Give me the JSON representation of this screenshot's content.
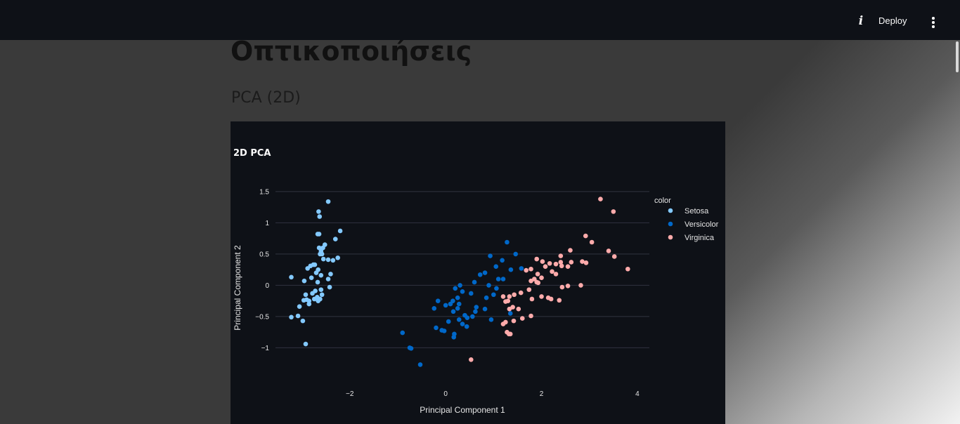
{
  "header": {
    "deploy_label": "Deploy",
    "info_icon": "info-icon",
    "menu_icon": "more-vert-icon"
  },
  "page": {
    "title": "Οπτικοποιήσεις",
    "subtitle": "PCA (2D)"
  },
  "chart_data": {
    "type": "scatter",
    "title": "2D PCA",
    "xlabel": "Principal Component 1",
    "ylabel": "Principal Component 2",
    "xlim": [
      -3.55,
      4.25
    ],
    "ylim": [
      -1.4,
      1.6
    ],
    "xticks": [
      -2,
      0,
      2,
      4
    ],
    "yticks": [
      -1,
      -0.5,
      0,
      0.5,
      1,
      1.5
    ],
    "xtick_labels": [
      "−2",
      "0",
      "2",
      "4"
    ],
    "ytick_labels": [
      "−1",
      "−0.5",
      "0",
      "0.5",
      "1",
      "1.5"
    ],
    "grid": true,
    "legend_title": "color",
    "legend_position": "right",
    "background": "#0e1117",
    "series": [
      {
        "name": "Setosa",
        "color": "#83c9ff",
        "points": [
          [
            -2.45,
            1.34
          ],
          [
            -2.65,
            1.18
          ],
          [
            -2.63,
            1.1
          ],
          [
            -2.2,
            0.87
          ],
          [
            -2.3,
            0.74
          ],
          [
            -2.64,
            0.82
          ],
          [
            -2.67,
            0.82
          ],
          [
            -2.52,
            0.65
          ],
          [
            -2.64,
            0.6
          ],
          [
            -2.56,
            0.6
          ],
          [
            -2.6,
            0.55
          ],
          [
            -2.58,
            0.5
          ],
          [
            -2.62,
            0.5
          ],
          [
            -2.25,
            0.44
          ],
          [
            -2.35,
            0.4
          ],
          [
            -2.45,
            0.41
          ],
          [
            -2.55,
            0.42
          ],
          [
            -2.73,
            0.33
          ],
          [
            -2.76,
            0.33
          ],
          [
            -2.82,
            0.31
          ],
          [
            -2.88,
            0.27
          ],
          [
            -2.66,
            0.25
          ],
          [
            -2.7,
            0.2
          ],
          [
            -2.4,
            0.18
          ],
          [
            -2.6,
            0.16
          ],
          [
            -2.8,
            0.12
          ],
          [
            -2.45,
            0.1
          ],
          [
            -2.67,
            0.05
          ],
          [
            -2.95,
            0.07
          ],
          [
            -3.22,
            0.13
          ],
          [
            -2.42,
            -0.03
          ],
          [
            -2.6,
            -0.07
          ],
          [
            -2.72,
            -0.09
          ],
          [
            -2.78,
            -0.13
          ],
          [
            -2.92,
            -0.15
          ],
          [
            -2.58,
            -0.15
          ],
          [
            -2.68,
            -0.19
          ],
          [
            -2.74,
            -0.22
          ],
          [
            -2.9,
            -0.23
          ],
          [
            -2.96,
            -0.24
          ],
          [
            -2.85,
            -0.25
          ],
          [
            -2.66,
            -0.25
          ],
          [
            -2.62,
            -0.22
          ],
          [
            -2.85,
            -0.3
          ],
          [
            -3.05,
            -0.34
          ],
          [
            -3.08,
            -0.49
          ],
          [
            -3.22,
            -0.51
          ],
          [
            -2.98,
            -0.57
          ],
          [
            -2.92,
            -0.94
          ]
        ]
      },
      {
        "name": "Versicolor",
        "color": "#0068c9",
        "points": [
          [
            1.28,
            0.69
          ],
          [
            0.93,
            0.47
          ],
          [
            1.46,
            0.5
          ],
          [
            1.18,
            0.4
          ],
          [
            1.05,
            0.3
          ],
          [
            1.58,
            0.27
          ],
          [
            1.36,
            0.25
          ],
          [
            0.82,
            0.2
          ],
          [
            0.72,
            0.17
          ],
          [
            1.1,
            0.1
          ],
          [
            1.2,
            0.1
          ],
          [
            0.6,
            0.05
          ],
          [
            0.3,
            0.0
          ],
          [
            0.2,
            -0.05
          ],
          [
            0.9,
            0.0
          ],
          [
            0.35,
            -0.1
          ],
          [
            0.53,
            -0.13
          ],
          [
            1.06,
            -0.05
          ],
          [
            1.0,
            -0.15
          ],
          [
            0.85,
            -0.2
          ],
          [
            0.25,
            -0.2
          ],
          [
            0.15,
            -0.25
          ],
          [
            0.28,
            -0.3
          ],
          [
            0.1,
            -0.3
          ],
          [
            0.0,
            -0.32
          ],
          [
            -0.16,
            -0.25
          ],
          [
            0.64,
            -0.35
          ],
          [
            0.82,
            -0.38
          ],
          [
            0.62,
            -0.42
          ],
          [
            0.56,
            -0.5
          ],
          [
            0.4,
            -0.48
          ],
          [
            0.25,
            -0.37
          ],
          [
            0.16,
            -0.42
          ],
          [
            0.06,
            -0.58
          ],
          [
            0.28,
            -0.55
          ],
          [
            0.45,
            -0.52
          ],
          [
            0.95,
            -0.55
          ],
          [
            1.35,
            -0.45
          ],
          [
            0.35,
            -0.62
          ],
          [
            -0.2,
            -0.68
          ],
          [
            -0.08,
            -0.72
          ],
          [
            -0.03,
            -0.73
          ],
          [
            0.18,
            -0.78
          ],
          [
            0.17,
            -0.83
          ],
          [
            0.44,
            -0.66
          ],
          [
            -0.24,
            -0.37
          ],
          [
            -0.9,
            -0.76
          ],
          [
            -0.75,
            -1.0
          ],
          [
            -0.72,
            -1.01
          ],
          [
            -0.53,
            -1.27
          ]
        ]
      },
      {
        "name": "Virginica",
        "color": "#ffabab",
        "points": [
          [
            3.23,
            1.38
          ],
          [
            3.5,
            1.18
          ],
          [
            3.8,
            0.26
          ],
          [
            3.52,
            0.46
          ],
          [
            3.4,
            0.55
          ],
          [
            3.05,
            0.69
          ],
          [
            2.92,
            0.79
          ],
          [
            2.6,
            0.56
          ],
          [
            2.4,
            0.47
          ],
          [
            2.4,
            0.37
          ],
          [
            2.42,
            0.31
          ],
          [
            2.55,
            0.3
          ],
          [
            2.62,
            0.37
          ],
          [
            2.85,
            0.38
          ],
          [
            2.93,
            0.36
          ],
          [
            2.3,
            0.34
          ],
          [
            2.17,
            0.35
          ],
          [
            2.08,
            0.3
          ],
          [
            1.9,
            0.42
          ],
          [
            2.02,
            0.38
          ],
          [
            1.78,
            0.26
          ],
          [
            1.68,
            0.24
          ],
          [
            2.22,
            0.22
          ],
          [
            2.3,
            0.18
          ],
          [
            1.92,
            0.18
          ],
          [
            2.0,
            0.12
          ],
          [
            1.85,
            0.1
          ],
          [
            1.9,
            0.05
          ],
          [
            1.93,
            0.04
          ],
          [
            1.78,
            0.07
          ],
          [
            2.43,
            -0.03
          ],
          [
            2.55,
            -0.01
          ],
          [
            2.82,
            0.0
          ],
          [
            1.74,
            -0.07
          ],
          [
            1.57,
            -0.12
          ],
          [
            1.43,
            -0.15
          ],
          [
            1.33,
            -0.18
          ],
          [
            1.2,
            -0.18
          ],
          [
            1.25,
            -0.26
          ],
          [
            1.3,
            -0.25
          ],
          [
            1.4,
            -0.35
          ],
          [
            1.33,
            -0.38
          ],
          [
            1.8,
            -0.22
          ],
          [
            2.0,
            -0.18
          ],
          [
            2.14,
            -0.2
          ],
          [
            2.2,
            -0.22
          ],
          [
            2.37,
            -0.24
          ],
          [
            1.52,
            -0.38
          ],
          [
            1.78,
            -0.49
          ],
          [
            1.6,
            -0.53
          ],
          [
            1.42,
            -0.57
          ],
          [
            1.25,
            -0.59
          ],
          [
            1.2,
            -0.62
          ],
          [
            1.28,
            -0.75
          ],
          [
            1.32,
            -0.78
          ],
          [
            1.35,
            -0.78
          ],
          [
            0.53,
            -1.19
          ]
        ]
      }
    ]
  }
}
